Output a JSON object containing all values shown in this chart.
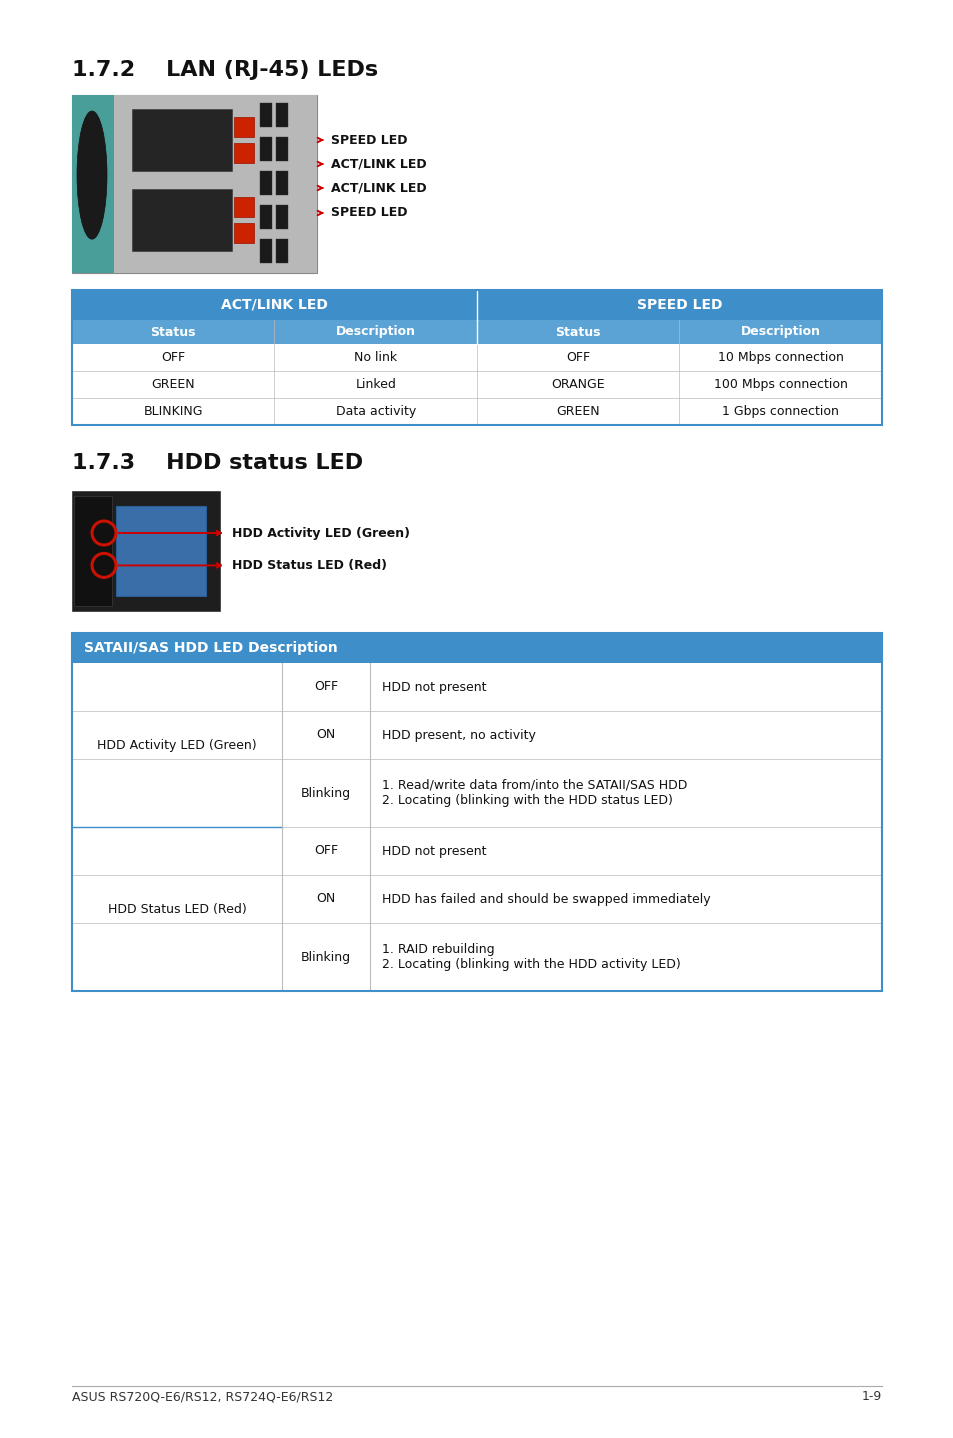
{
  "page_bg": "#ffffff",
  "section1_title": "1.7.2    LAN (RJ-45) LEDs",
  "section2_title": "1.7.3    HDD status LED",
  "header_bg": "#3d8ec9",
  "subheader_bg": "#5aa3d4",
  "table_border_color": "#3d8ec9",
  "footer_text": "ASUS RS720Q-E6/RS12, RS724Q-E6/RS12",
  "footer_page": "1-9",
  "lan_table_header": [
    "ACT/LINK LED",
    "SPEED LED"
  ],
  "lan_col_headers": [
    "Status",
    "Description",
    "Status",
    "Description"
  ],
  "lan_rows": [
    [
      "OFF",
      "No link",
      "OFF",
      "10 Mbps connection"
    ],
    [
      "GREEN",
      "Linked",
      "ORANGE",
      "100 Mbps connection"
    ],
    [
      "BLINKING",
      "Data activity",
      "GREEN",
      "1 Gbps connection"
    ]
  ],
  "lan_arrow_labels": [
    "SPEED LED",
    "ACT/LINK LED",
    "ACT/LINK LED",
    "SPEED LED"
  ],
  "hdd_table_title": "SATAII/SAS HDD LED Description",
  "hdd_rows": [
    [
      "",
      "OFF",
      "HDD not present"
    ],
    [
      "HDD Activity LED (Green)",
      "ON",
      "HDD present, no activity"
    ],
    [
      "",
      "Blinking",
      "1. Read/write data from/into the SATAII/SAS HDD\n2. Locating (blinking with the HDD status LED)"
    ],
    [
      "",
      "OFF",
      "HDD not present"
    ],
    [
      "HDD Status LED (Red)",
      "ON",
      "HDD has failed and should be swapped immediately"
    ],
    [
      "",
      "Blinking",
      "1. RAID rebuilding\n2. Locating (blinking with the HDD activity LED)"
    ]
  ],
  "hdd_label1": "HDD Activity LED (Green)",
  "hdd_label2": "HDD Status LED (Red)"
}
